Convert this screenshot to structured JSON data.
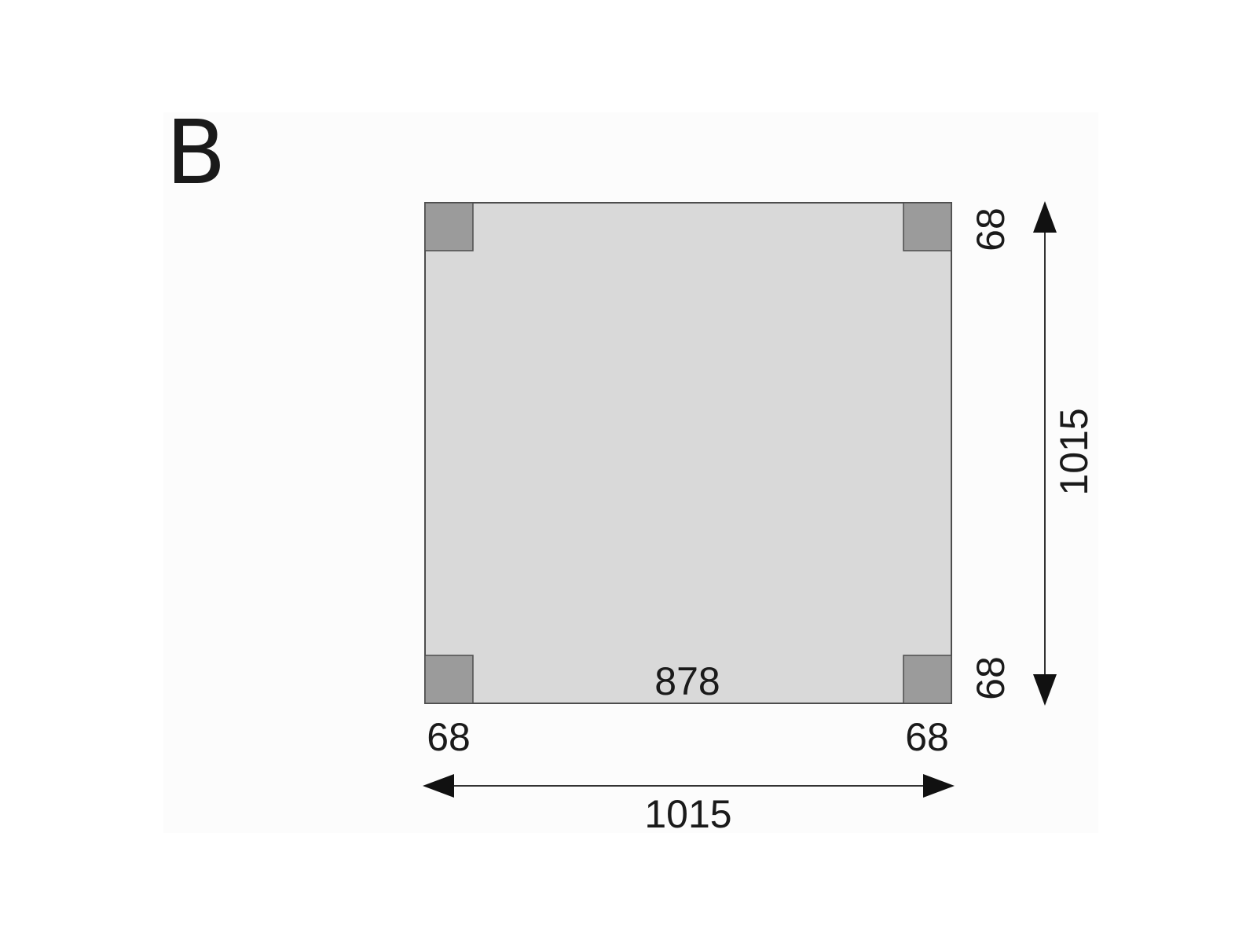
{
  "panel_label": "B",
  "colors": {
    "panel_bg": "#fcfcfc",
    "area_fill": "#d9d9d9",
    "post_fill": "#9b9b9b",
    "outline": "#4d4d4d",
    "text": "#1a1a1a"
  },
  "dimensions": {
    "inner_width": "878",
    "post_bottom_left": "68",
    "post_bottom_right": "68",
    "post_right_top": "68",
    "post_right_bottom": "68",
    "overall_width": "1015",
    "overall_depth": "1015"
  }
}
